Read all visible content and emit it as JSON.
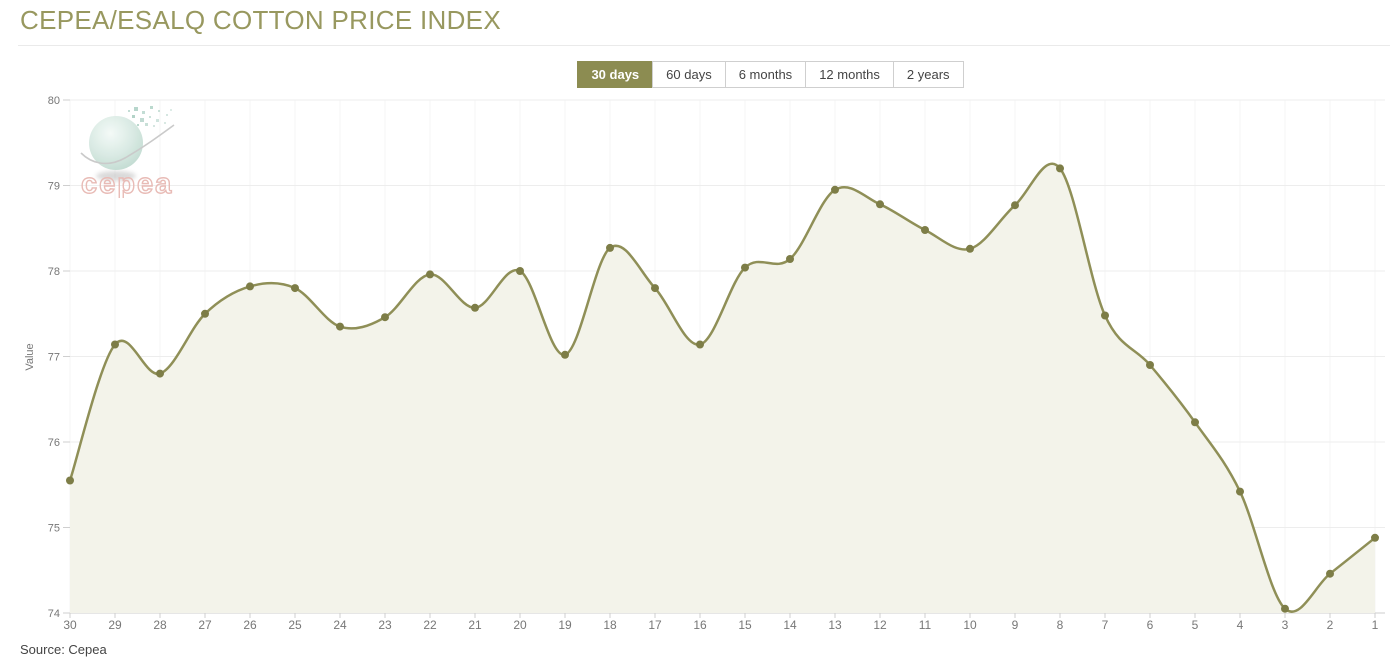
{
  "page": {
    "title": "CEPEA/ESALQ COTTON PRICE INDEX",
    "source": "Source: Cepea"
  },
  "logo": {
    "text": "cepea"
  },
  "controls": {
    "ranges": [
      {
        "label": "30 days",
        "active": true
      },
      {
        "label": "60 days",
        "active": false
      },
      {
        "label": "6 months",
        "active": false
      },
      {
        "label": "12 months",
        "active": false
      },
      {
        "label": "2 years",
        "active": false
      }
    ]
  },
  "colors": {
    "accent": "#8c8c51",
    "title_text": "#98985f",
    "line": "#8f8f57",
    "marker": "#7d7d47",
    "area_fill": "#f3f3ea",
    "grid_h": "#ededed",
    "grid_v": "#f6f6f6",
    "axis_line": "#cccccc",
    "tick": "#cfcfcf",
    "axis_text": "#777777",
    "logo_globe": "#cbe2d9",
    "logo_text_stroke": "#e7b6b0"
  },
  "chart_data": {
    "type": "area",
    "title": "CEPEA/ESALQ COTTON PRICE INDEX",
    "xlabel": "",
    "ylabel": "Value",
    "x": [
      30,
      29,
      28,
      27,
      26,
      25,
      24,
      23,
      22,
      21,
      20,
      19,
      18,
      17,
      16,
      15,
      14,
      13,
      12,
      11,
      10,
      9,
      8,
      7,
      6,
      5,
      4,
      3,
      2,
      1
    ],
    "values": [
      75.55,
      77.14,
      76.8,
      77.5,
      77.82,
      77.8,
      77.35,
      77.46,
      77.96,
      77.57,
      78.0,
      77.02,
      78.27,
      77.8,
      77.14,
      78.04,
      78.14,
      78.95,
      78.78,
      78.48,
      78.26,
      78.77,
      79.2,
      77.48,
      76.9,
      76.23,
      75.42,
      74.05,
      74.46,
      74.88
    ],
    "ylim": [
      74,
      80
    ],
    "yticks": [
      74,
      75,
      76,
      77,
      78,
      79,
      80
    ],
    "grid": true,
    "legend_position": "none",
    "smooth": true,
    "markers": true
  }
}
